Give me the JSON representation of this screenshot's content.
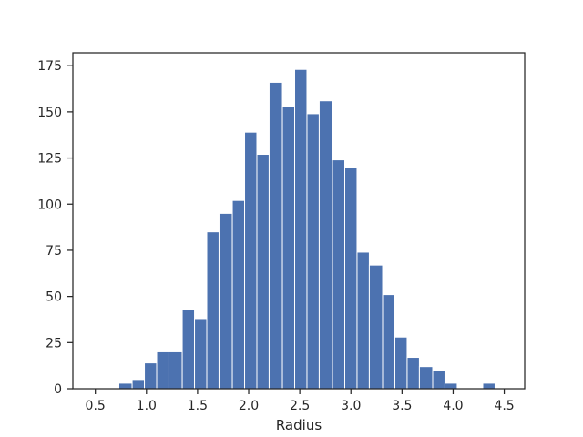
{
  "chart_data": {
    "type": "bar",
    "title": "",
    "xlabel": "Radius",
    "ylabel": "",
    "xlim": [
      0.28,
      4.7
    ],
    "ylim": [
      0,
      182
    ],
    "grid": false,
    "bar_color": "#4c72b0",
    "edge_color": "#ffffff",
    "bins": [
      {
        "start": 0.61,
        "end": 0.73,
        "value": 0
      },
      {
        "start": 0.73,
        "end": 0.86,
        "value": 3
      },
      {
        "start": 0.86,
        "end": 0.98,
        "value": 5
      },
      {
        "start": 0.98,
        "end": 1.1,
        "value": 14
      },
      {
        "start": 1.1,
        "end": 1.22,
        "value": 20
      },
      {
        "start": 1.22,
        "end": 1.35,
        "value": 20
      },
      {
        "start": 1.35,
        "end": 1.47,
        "value": 43
      },
      {
        "start": 1.47,
        "end": 1.59,
        "value": 38
      },
      {
        "start": 1.59,
        "end": 1.71,
        "value": 85
      },
      {
        "start": 1.71,
        "end": 1.84,
        "value": 95
      },
      {
        "start": 1.84,
        "end": 1.96,
        "value": 102
      },
      {
        "start": 1.96,
        "end": 2.08,
        "value": 139
      },
      {
        "start": 2.08,
        "end": 2.2,
        "value": 127
      },
      {
        "start": 2.2,
        "end": 2.33,
        "value": 166
      },
      {
        "start": 2.33,
        "end": 2.45,
        "value": 153
      },
      {
        "start": 2.45,
        "end": 2.57,
        "value": 173
      },
      {
        "start": 2.57,
        "end": 2.69,
        "value": 149
      },
      {
        "start": 2.69,
        "end": 2.82,
        "value": 156
      },
      {
        "start": 2.82,
        "end": 2.94,
        "value": 124
      },
      {
        "start": 2.94,
        "end": 3.06,
        "value": 120
      },
      {
        "start": 3.06,
        "end": 3.18,
        "value": 74
      },
      {
        "start": 3.18,
        "end": 3.31,
        "value": 67
      },
      {
        "start": 3.31,
        "end": 3.43,
        "value": 51
      },
      {
        "start": 3.43,
        "end": 3.55,
        "value": 28
      },
      {
        "start": 3.55,
        "end": 3.67,
        "value": 17
      },
      {
        "start": 3.67,
        "end": 3.8,
        "value": 12
      },
      {
        "start": 3.8,
        "end": 3.92,
        "value": 10
      },
      {
        "start": 3.92,
        "end": 4.04,
        "value": 3
      },
      {
        "start": 4.04,
        "end": 4.16,
        "value": 0
      },
      {
        "start": 4.16,
        "end": 4.29,
        "value": 0
      },
      {
        "start": 4.29,
        "end": 4.41,
        "value": 3
      }
    ],
    "x_ticks": [
      {
        "value": 0.5,
        "label": "0.5"
      },
      {
        "value": 1.0,
        "label": "1.0"
      },
      {
        "value": 1.5,
        "label": "1.5"
      },
      {
        "value": 2.0,
        "label": "2.0"
      },
      {
        "value": 2.5,
        "label": "2.5"
      },
      {
        "value": 3.0,
        "label": "3.0"
      },
      {
        "value": 3.5,
        "label": "3.5"
      },
      {
        "value": 4.0,
        "label": "4.0"
      },
      {
        "value": 4.5,
        "label": "4.5"
      }
    ],
    "y_ticks": [
      {
        "value": 0,
        "label": "0"
      },
      {
        "value": 25,
        "label": "25"
      },
      {
        "value": 50,
        "label": "50"
      },
      {
        "value": 75,
        "label": "75"
      },
      {
        "value": 100,
        "label": "100"
      },
      {
        "value": 125,
        "label": "125"
      },
      {
        "value": 150,
        "label": "150"
      },
      {
        "value": 175,
        "label": "175"
      }
    ]
  }
}
